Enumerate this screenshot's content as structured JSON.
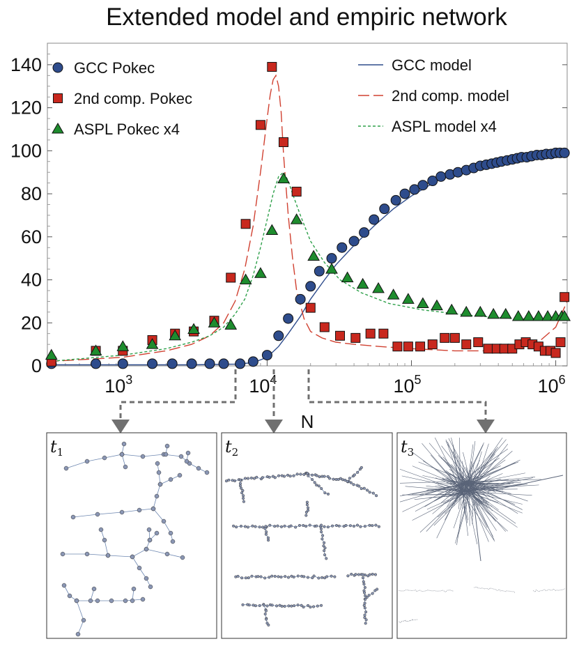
{
  "chart_data": {
    "type": "scatter",
    "title": "Extended model and empiric network",
    "xlabel": "N",
    "ylabel": "",
    "xscale": "log",
    "xlim": [
      300,
      1200000
    ],
    "ylim": [
      0,
      150
    ],
    "yticks": [
      0,
      20,
      40,
      60,
      80,
      100,
      120,
      140
    ],
    "xticks": [
      {
        "value": 1000,
        "base": "10",
        "exp": "3"
      },
      {
        "value": 10000,
        "base": "10",
        "exp": "4"
      },
      {
        "value": 100000,
        "base": "10",
        "exp": "5"
      },
      {
        "value": 1000000,
        "base": "10",
        "exp": "6"
      }
    ],
    "legend_position": "top",
    "colors": {
      "gcc": "#2e4c8c",
      "second": "#c8281e",
      "aspl": "#1e8c2e",
      "gcc_line": "#2e4c8c",
      "second_line": "#d04030",
      "aspl_line": "#2ea04a",
      "arrow": "#707070"
    },
    "series": [
      {
        "name": "GCC Pokec",
        "marker": "circle",
        "color_key": "gcc",
        "x": [
          320,
          650,
          1000,
          1600,
          2200,
          3000,
          4000,
          5000,
          6500,
          8000,
          10000,
          12000,
          14000,
          17000,
          20000,
          23000,
          28000,
          33000,
          40000,
          47000,
          55000,
          65000,
          78000,
          90000,
          105000,
          120000,
          140000,
          160000,
          185000,
          210000,
          240000,
          270000,
          300000,
          330000,
          360000,
          390000,
          420000,
          460000,
          500000,
          540000,
          580000,
          630000,
          680000,
          740000,
          800000,
          860000,
          930000,
          1000000,
          1070000,
          1150000
        ],
        "y": [
          1,
          1,
          1,
          1,
          1,
          1,
          1,
          1,
          1,
          2,
          5,
          14,
          22,
          31,
          37,
          44,
          50,
          55,
          58,
          62,
          68,
          73,
          77,
          80,
          82,
          84,
          86,
          88,
          89,
          90,
          91,
          92,
          93,
          93.5,
          94,
          94.5,
          95,
          95.5,
          96,
          96.5,
          97,
          97,
          97.5,
          98,
          98,
          98.5,
          98.5,
          99,
          99,
          99
        ]
      },
      {
        "name": "2nd comp. Pokec",
        "marker": "square",
        "color_key": "second",
        "x": [
          320,
          650,
          1000,
          1600,
          2300,
          3100,
          4300,
          5600,
          7100,
          9000,
          10800,
          13000,
          16000,
          20000,
          25000,
          32000,
          41000,
          52000,
          64000,
          80000,
          95000,
          115000,
          140000,
          170000,
          200000,
          240000,
          290000,
          340000,
          390000,
          440000,
          500000,
          560000,
          620000,
          690000,
          760000,
          840000,
          920000,
          1000000,
          1080000,
          1150000
        ],
        "y": [
          2,
          7,
          7,
          12,
          15,
          16,
          21,
          41,
          66,
          112,
          139,
          104,
          81,
          27,
          18,
          14,
          13,
          15,
          15,
          9,
          9,
          9,
          10,
          13,
          13,
          10,
          11,
          8,
          8,
          8,
          8,
          10,
          11,
          10,
          9,
          7,
          7,
          6,
          11,
          32
        ]
      },
      {
        "name": "ASPL Pokec  x4",
        "marker": "triangle",
        "color_key": "aspl",
        "x": [
          320,
          650,
          1000,
          1600,
          2300,
          3100,
          4300,
          5600,
          7100,
          9000,
          10800,
          13000,
          16000,
          21000,
          28000,
          36000,
          46000,
          59000,
          75000,
          95000,
          120000,
          150000,
          190000,
          240000,
          300000,
          370000,
          450000,
          550000,
          650000,
          760000,
          880000,
          1000000,
          1100000,
          1150000
        ],
        "y": [
          5,
          7,
          9,
          10,
          14,
          17,
          20,
          19,
          40,
          43,
          63,
          87,
          68,
          51,
          45,
          41,
          38,
          36,
          33,
          31,
          29,
          28,
          26,
          25,
          25,
          24,
          24,
          23,
          23,
          23,
          23,
          23,
          23,
          23
        ]
      },
      {
        "name": "GCC model",
        "line": "solid",
        "color_key": "gcc_line",
        "x": [
          300,
          1000,
          3000,
          6000,
          8000,
          10000,
          12000,
          14000,
          17000,
          20000,
          25000,
          30000,
          40000,
          55000,
          75000,
          100000,
          150000,
          200000,
          300000,
          500000,
          800000,
          1200000
        ],
        "y": [
          0.5,
          0.5,
          0.5,
          0.8,
          1.5,
          4,
          9,
          15,
          23,
          31,
          40,
          47,
          56,
          65,
          73,
          79,
          86,
          89.5,
          93,
          96,
          97.5,
          98.5
        ]
      },
      {
        "name": "2nd comp. model",
        "line": "long-dash",
        "color_key": "second_line",
        "x": [
          300,
          1000,
          2000,
          3000,
          4000,
          5000,
          6000,
          7000,
          8000,
          9000,
          10000,
          10500,
          11000,
          11500,
          12000,
          12500,
          13000,
          14000,
          15000,
          16000,
          18000,
          20000,
          24000,
          30000,
          40000,
          60000,
          100000,
          200000,
          400000,
          700000,
          1000000,
          1200000
        ],
        "y": [
          2,
          4,
          7,
          10,
          14,
          20,
          30,
          45,
          65,
          90,
          115,
          126,
          133,
          135,
          130,
          118,
          98,
          70,
          50,
          35,
          22,
          16,
          13,
          11,
          10,
          9,
          8,
          7,
          7,
          9,
          18,
          30
        ]
      },
      {
        "name": "ASPL model  x4",
        "line": "short-dash",
        "color_key": "aspl_line",
        "x": [
          300,
          1000,
          2000,
          3000,
          4000,
          5000,
          6000,
          7000,
          8000,
          9000,
          10000,
          11000,
          12000,
          13000,
          14000,
          15000,
          17000,
          20000,
          25000,
          32000,
          45000,
          70000,
          120000,
          250000,
          500000,
          1000000,
          1200000
        ],
        "y": [
          2,
          5,
          8,
          11,
          14,
          18,
          24,
          31,
          42,
          55,
          68,
          80,
          88,
          90,
          86,
          80,
          70,
          58,
          48,
          40,
          34,
          29,
          26,
          23.5,
          22,
          22,
          22.5
        ]
      }
    ],
    "panels": [
      {
        "label": "t",
        "sub": "1"
      },
      {
        "label": "t",
        "sub": "2"
      },
      {
        "label": "t",
        "sub": "3"
      }
    ]
  }
}
